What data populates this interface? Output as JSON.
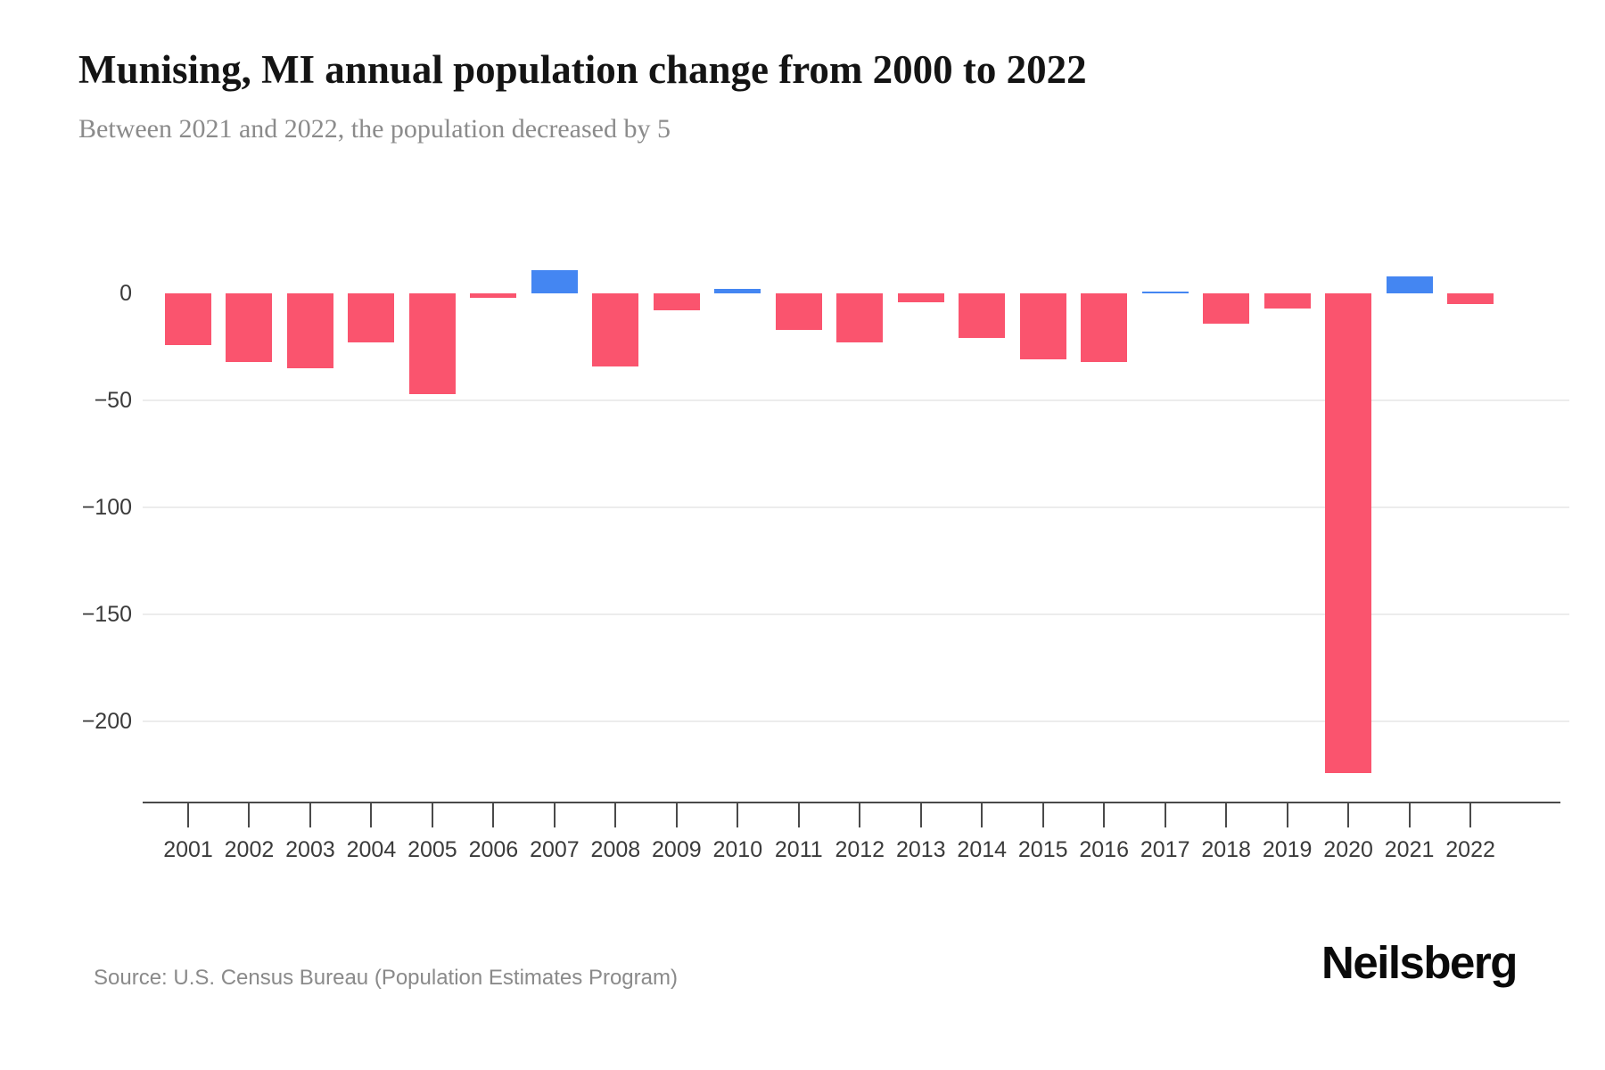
{
  "header": {
    "title": "Munising, MI annual population change from 2000 to 2022",
    "subtitle": "Between 2021 and 2022, the population decreased by 5"
  },
  "chart_data": {
    "type": "bar",
    "title": "Munising, MI annual population change from 2000 to 2022",
    "subtitle": "Between 2021 and 2022, the population decreased by 5",
    "categories": [
      "2001",
      "2002",
      "2003",
      "2004",
      "2005",
      "2006",
      "2007",
      "2008",
      "2009",
      "2010",
      "2011",
      "2012",
      "2013",
      "2014",
      "2015",
      "2016",
      "2017",
      "2018",
      "2019",
      "2020",
      "2021",
      "2022"
    ],
    "values": [
      -24,
      -32,
      -35,
      -23,
      -47,
      -2,
      11,
      -34,
      -8,
      2,
      -17,
      -23,
      -4,
      -21,
      -31,
      -32,
      1,
      -14,
      -7,
      -224,
      8,
      -5
    ],
    "xlabel": "",
    "ylabel": "",
    "yticks": [
      0,
      -50,
      -100,
      -150,
      -200
    ],
    "ylim": [
      -238,
      15
    ],
    "grid": "horizontal",
    "legend": "none",
    "colors": {
      "negative_bar": "#fa546e",
      "positive_bar": "#4486f2",
      "gridline": "#ececec",
      "axis": "#4a4a4a",
      "tick_label": "#3b3b3b"
    }
  },
  "footer": {
    "source": "Source: U.S. Census Bureau (Population Estimates Program)",
    "brand": "Neilsberg"
  }
}
